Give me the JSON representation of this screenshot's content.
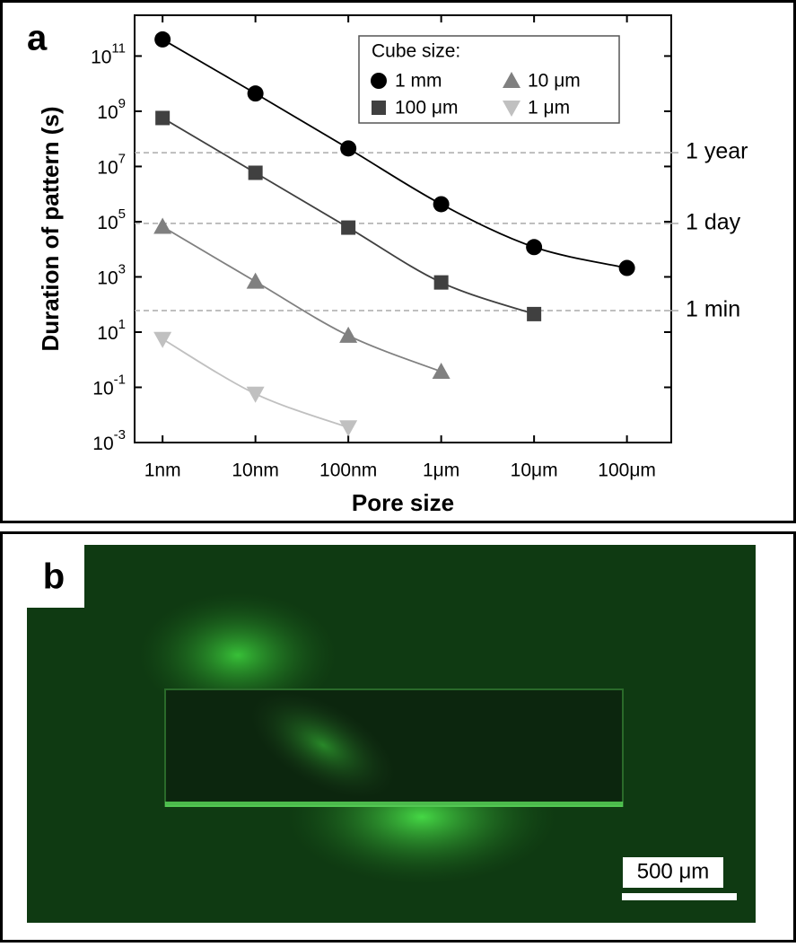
{
  "chart_data": {
    "type": "scatter",
    "panel_label": "a",
    "xlabel": "Pore size",
    "ylabel": "Duration of pattern (s)",
    "log_x": true,
    "log_y": true,
    "x": [
      1,
      10,
      100,
      1000,
      10000,
      100000
    ],
    "xlim": [
      0.5,
      300000
    ],
    "xticks": [
      {
        "value": 1,
        "label": "1nm"
      },
      {
        "value": 10,
        "label": "10nm"
      },
      {
        "value": 100,
        "label": "100nm"
      },
      {
        "value": 1000,
        "label": "1μm"
      },
      {
        "value": 10000,
        "label": "10μm"
      },
      {
        "value": 100000,
        "label": "100μm"
      }
    ],
    "ylim": [
      0.001,
      3000000000000
    ],
    "yticks": [
      {
        "value": 0.001,
        "label": "10^-3"
      },
      {
        "value": 0.1,
        "label": "10^-1"
      },
      {
        "value": 10,
        "label": "10^1"
      },
      {
        "value": 1000,
        "label": "10^3"
      },
      {
        "value": 100000,
        "label": "10^5"
      },
      {
        "value": 10000000,
        "label": "10^7"
      },
      {
        "value": 1000000000,
        "label": "10^9"
      },
      {
        "value": 100000000000,
        "label": "10^11"
      }
    ],
    "legend_title": "Cube size:",
    "series": [
      {
        "name": "1 mm",
        "marker": "circle",
        "color": "#000000",
        "values": [
          400000000000,
          4400000000,
          45000000,
          430000,
          12000,
          2100
        ]
      },
      {
        "name": "100 μm",
        "marker": "square",
        "color": "#404040",
        "values": [
          570000000,
          5900000,
          61000,
          630,
          45,
          null
        ]
      },
      {
        "name": "10 μm",
        "marker": "triangle-up",
        "color": "#808080",
        "values": [
          66000,
          680,
          7.5,
          0.37,
          null,
          null
        ]
      },
      {
        "name": "1 μm",
        "marker": "triangle-down",
        "color": "#c0c0c0",
        "values": [
          5.6,
          0.058,
          0.0035,
          null,
          null,
          null
        ]
      }
    ],
    "reference_lines": [
      {
        "value": 31536000,
        "label": "1 year"
      },
      {
        "value": 86400,
        "label": "1 day"
      },
      {
        "value": 60,
        "label": "1 min"
      }
    ]
  },
  "image": {
    "panel_label": "b",
    "scale_bar": "500 μm"
  }
}
